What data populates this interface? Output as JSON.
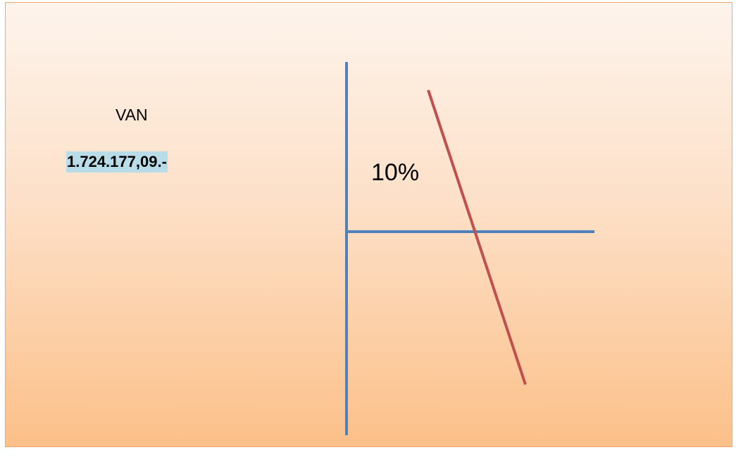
{
  "label": "VAN",
  "value": "1.724.177,09.-",
  "rate": "10%"
}
